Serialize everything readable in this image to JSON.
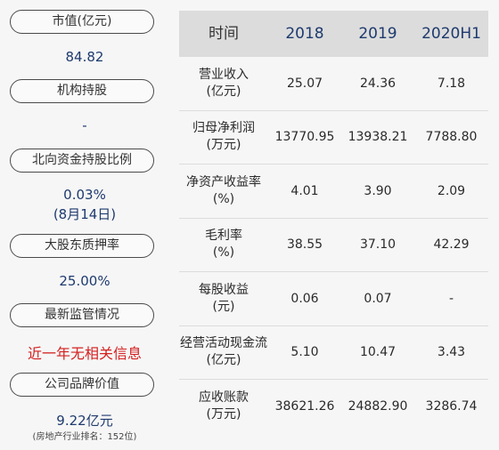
{
  "left": {
    "market_cap_label": "市值(亿元)",
    "market_cap_value": "84.82",
    "institution_label": "机构持股",
    "institution_value": "-",
    "northbound_label": "北向资金持股比例",
    "northbound_value": "0.03%",
    "northbound_date": "(8月14日)",
    "pledge_label": "大股东质押率",
    "pledge_value": "25.00%",
    "regulation_label": "最新监管情况",
    "regulation_value": "近一年无相关信息",
    "brand_label": "公司品牌价值",
    "brand_value": "9.22亿元",
    "brand_note": "(房地产行业排名：152位)"
  },
  "table": {
    "headers": [
      "时间",
      "2018",
      "2019",
      "2020H1"
    ],
    "rows": [
      {
        "name": "营业收入",
        "unit": "(亿元)",
        "v2018": "25.07",
        "v2019": "24.36",
        "v2020": "7.18"
      },
      {
        "name": "归母净利润",
        "unit": "(万元)",
        "v2018": "13770.95",
        "v2019": "13938.21",
        "v2020": "7788.80"
      },
      {
        "name": "净资产收益率",
        "unit": "(%)",
        "v2018": "4.01",
        "v2019": "3.90",
        "v2020": "2.09"
      },
      {
        "name": "毛利率",
        "unit": "(%)",
        "v2018": "38.55",
        "v2019": "37.10",
        "v2020": "42.29"
      },
      {
        "name": "每股收益",
        "unit": "(元)",
        "v2018": "0.06",
        "v2019": "0.07",
        "v2020": "-"
      },
      {
        "name": "经营活动现金流",
        "unit": "(亿元)",
        "v2018": "5.10",
        "v2019": "10.47",
        "v2020": "3.43"
      },
      {
        "name": "应收账款",
        "unit": "(万元)",
        "v2018": "38621.26",
        "v2019": "24882.90",
        "v2020": "3286.74"
      }
    ]
  }
}
